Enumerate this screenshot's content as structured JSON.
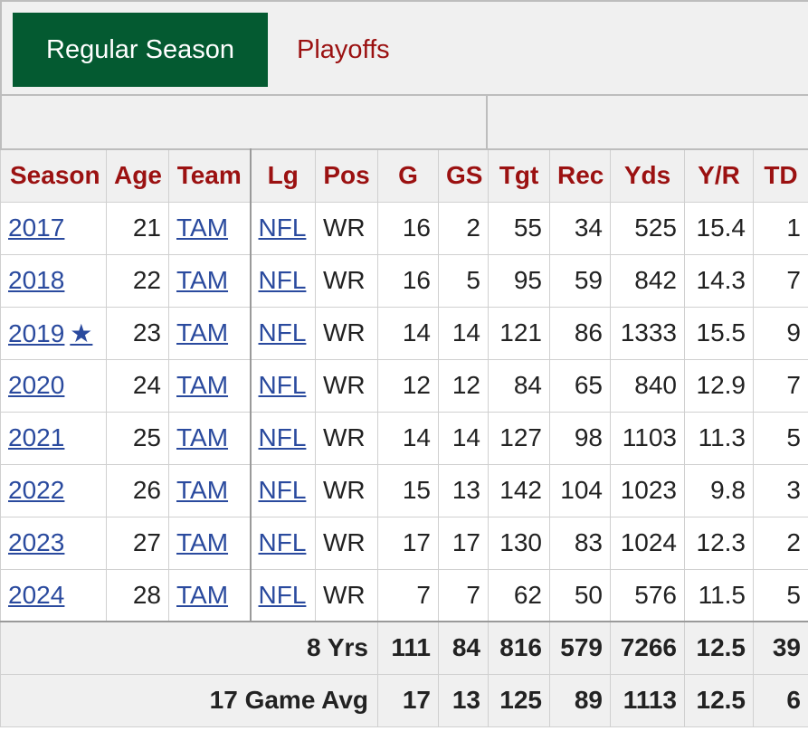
{
  "tabs": {
    "active": "Regular Season",
    "inactive": "Playoffs"
  },
  "table": {
    "headers": [
      "Season",
      "Age",
      "Team",
      "Lg",
      "Pos",
      "G",
      "GS",
      "Tgt",
      "Rec",
      "Yds",
      "Y/R",
      "TD"
    ],
    "rows": [
      {
        "season": "2017",
        "star": "",
        "age": "21",
        "team": "TAM",
        "lg": "NFL",
        "pos": "WR",
        "g": "16",
        "gs": "2",
        "tgt": "55",
        "rec": "34",
        "yds": "525",
        "yr": "15.4",
        "td": "1"
      },
      {
        "season": "2018",
        "star": "",
        "age": "22",
        "team": "TAM",
        "lg": "NFL",
        "pos": "WR",
        "g": "16",
        "gs": "5",
        "tgt": "95",
        "rec": "59",
        "yds": "842",
        "yr": "14.3",
        "td": "7"
      },
      {
        "season": "2019",
        "star": "★",
        "age": "23",
        "team": "TAM",
        "lg": "NFL",
        "pos": "WR",
        "g": "14",
        "gs": "14",
        "tgt": "121",
        "rec": "86",
        "yds": "1333",
        "yr": "15.5",
        "td": "9"
      },
      {
        "season": "2020",
        "star": "",
        "age": "24",
        "team": "TAM",
        "lg": "NFL",
        "pos": "WR",
        "g": "12",
        "gs": "12",
        "tgt": "84",
        "rec": "65",
        "yds": "840",
        "yr": "12.9",
        "td": "7"
      },
      {
        "season": "2021",
        "star": "",
        "age": "25",
        "team": "TAM",
        "lg": "NFL",
        "pos": "WR",
        "g": "14",
        "gs": "14",
        "tgt": "127",
        "rec": "98",
        "yds": "1103",
        "yr": "11.3",
        "td": "5"
      },
      {
        "season": "2022",
        "star": "",
        "age": "26",
        "team": "TAM",
        "lg": "NFL",
        "pos": "WR",
        "g": "15",
        "gs": "13",
        "tgt": "142",
        "rec": "104",
        "yds": "1023",
        "yr": "9.8",
        "td": "3"
      },
      {
        "season": "2023",
        "star": "",
        "age": "27",
        "team": "TAM",
        "lg": "NFL",
        "pos": "WR",
        "g": "17",
        "gs": "17",
        "tgt": "130",
        "rec": "83",
        "yds": "1024",
        "yr": "12.3",
        "td": "2"
      },
      {
        "season": "2024",
        "star": "",
        "age": "28",
        "team": "TAM",
        "lg": "NFL",
        "pos": "WR",
        "g": "7",
        "gs": "7",
        "tgt": "62",
        "rec": "50",
        "yds": "576",
        "yr": "11.5",
        "td": "5"
      }
    ],
    "footer": [
      {
        "label": "8 Yrs",
        "g": "111",
        "gs": "84",
        "tgt": "816",
        "rec": "579",
        "yds": "7266",
        "yr": "12.5",
        "td": "39"
      },
      {
        "label": "17 Game Avg",
        "g": "17",
        "gs": "13",
        "tgt": "125",
        "rec": "89",
        "yds": "1113",
        "yr": "12.5",
        "td": "6"
      }
    ]
  }
}
